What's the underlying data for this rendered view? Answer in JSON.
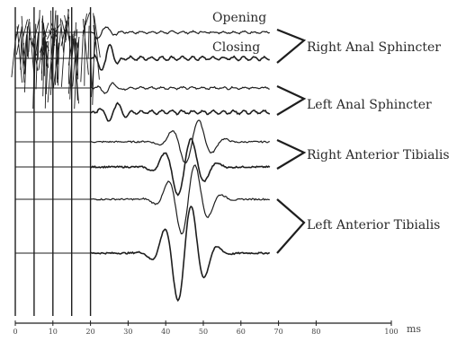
{
  "chart_data": {
    "type": "line",
    "xlabel": "ms",
    "x_ticks": [
      0,
      10,
      20,
      30,
      40,
      50,
      60,
      70,
      80,
      100
    ],
    "xlim": [
      0,
      100
    ],
    "legend": [
      "Opening",
      "Closing"
    ],
    "groups": [
      "Right Anal Sphincter",
      "Left Anal Sphincter",
      "Right Anterior Tibialis",
      "Left Anterior Tibialis"
    ],
    "stimulus_artifact_ms": [
      0,
      20
    ],
    "series": [
      {
        "group": 0,
        "trace": 1,
        "onset_ms": 21,
        "peak_ms": 23,
        "amplitude": 0.3
      },
      {
        "group": 0,
        "trace": 2,
        "onset_ms": 21,
        "peak_ms": 24,
        "amplitude": 0.6
      },
      {
        "group": 1,
        "trace": 1,
        "onset_ms": 22,
        "peak_ms": 25,
        "amplitude": 0.25
      },
      {
        "group": 1,
        "trace": 2,
        "onset_ms": 22,
        "peak_ms": 26,
        "amplitude": 0.45
      },
      {
        "group": 2,
        "trace": 1,
        "onset_ms": 32,
        "peak_ms": 47,
        "amplitude": 1.0
      },
      {
        "group": 2,
        "trace": 2,
        "onset_ms": 34,
        "peak_ms": 45,
        "amplitude": 1.3
      },
      {
        "group": 3,
        "trace": 1,
        "onset_ms": 34,
        "peak_ms": 46,
        "amplitude": 1.6
      },
      {
        "group": 3,
        "trace": 2,
        "onset_ms": 30,
        "peak_ms": 45,
        "amplitude": 2.2
      }
    ]
  }
}
